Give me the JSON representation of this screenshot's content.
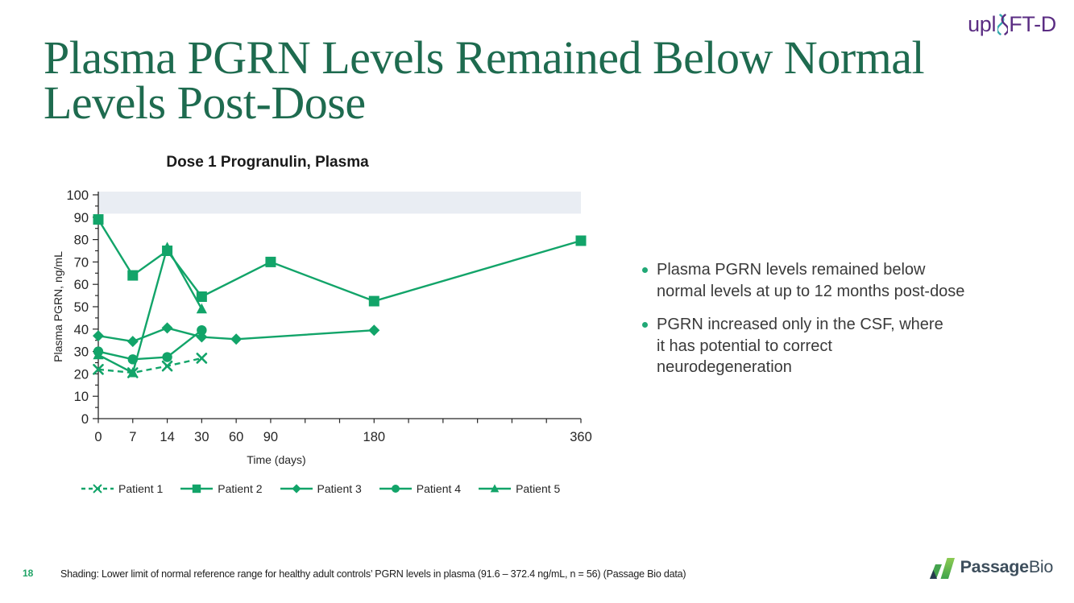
{
  "header": {
    "brand_pre": "upl",
    "brand_post": "FT-D",
    "title_lines": [
      "Plasma PGRN Levels Remained Below Normal",
      "Levels Post-Dose"
    ]
  },
  "bullets": [
    {
      "lines": [
        "Plasma PGRN levels remained below",
        "normal levels at up to 12 months post-dose"
      ]
    },
    {
      "lines": [
        "PGRN increased only in the CSF, where",
        "it has potential to correct",
        "neurodegeneration"
      ]
    }
  ],
  "footer": {
    "page_number": "18",
    "note": "Shading: Lower limit of normal reference range for healthy adult controls’ PGRN levels in plasma (91.6 – 372.4 ng/mL, n = 56) (Passage Bio data)",
    "logo_bold": "Passage",
    "logo_light": "Bio"
  },
  "colors": {
    "accent_green": "#12A469",
    "title_green": "#1E6B4F",
    "band_fill": "#E9EDF3",
    "logo_purple": "#5B2D83",
    "logo_teal": "#36A9AE",
    "passage_slate": "#3D4E5C",
    "passage_green_light": "#8CCB52",
    "passage_green_dark": "#3EA44C",
    "passage_navy": "#26394E",
    "bullet_dot": "#21A876",
    "axis_ink": "#262626"
  },
  "icons": [
    "dna-helix-icon",
    "passage-bio-flag-icon"
  ],
  "chart_data": {
    "type": "line",
    "title": "Dose 1 Progranulin, Plasma",
    "xlabel": "Time (days)",
    "ylabel": "Plasma PGRN, ng/mL",
    "ylim": [
      0,
      100
    ],
    "y_tick_step": 10,
    "x_categories": [
      0,
      7,
      14,
      30,
      60,
      90,
      120,
      150,
      180,
      210,
      240,
      270,
      300,
      330,
      360
    ],
    "x_labeled": [
      0,
      7,
      14,
      30,
      60,
      90,
      180,
      360
    ],
    "x_axis_style": "categorical-even-spacing",
    "grid": false,
    "legend_position": "bottom",
    "line_color": "#12A469",
    "shaded_band": {
      "from": 91.6,
      "to": 100,
      "color": "#E9EDF3",
      "meaning": "Lower limit of normal reference range for healthy adult controls"
    },
    "series": [
      {
        "name": "Patient 1",
        "marker": "x",
        "dashed": true,
        "points": [
          [
            0,
            22
          ],
          [
            7,
            20.5
          ],
          [
            14,
            23.5
          ],
          [
            30,
            27
          ]
        ]
      },
      {
        "name": "Patient 2",
        "marker": "square",
        "dashed": false,
        "points": [
          [
            0,
            89
          ],
          [
            7,
            64
          ],
          [
            14,
            75
          ],
          [
            30,
            54.5
          ],
          [
            90,
            70
          ],
          [
            180,
            52.5
          ],
          [
            360,
            79.5
          ]
        ]
      },
      {
        "name": "Patient 3",
        "marker": "diamond",
        "dashed": false,
        "points": [
          [
            0,
            37
          ],
          [
            7,
            34.5
          ],
          [
            14,
            40.5
          ],
          [
            30,
            36.5
          ],
          [
            60,
            35.5
          ],
          [
            180,
            39.5
          ]
        ]
      },
      {
        "name": "Patient 4",
        "marker": "circle",
        "dashed": false,
        "points": [
          [
            0,
            30
          ],
          [
            7,
            26.5
          ],
          [
            14,
            27.5
          ],
          [
            30,
            39.5
          ]
        ]
      },
      {
        "name": "Patient 5",
        "marker": "triangle",
        "dashed": false,
        "points": [
          [
            0,
            28.5
          ],
          [
            7,
            20.5
          ],
          [
            14,
            76.5
          ],
          [
            30,
            49
          ]
        ]
      }
    ],
    "draw_order": [
      "Patient 5",
      "Patient 3",
      "Patient 4",
      "Patient 2",
      "Patient 1"
    ]
  }
}
